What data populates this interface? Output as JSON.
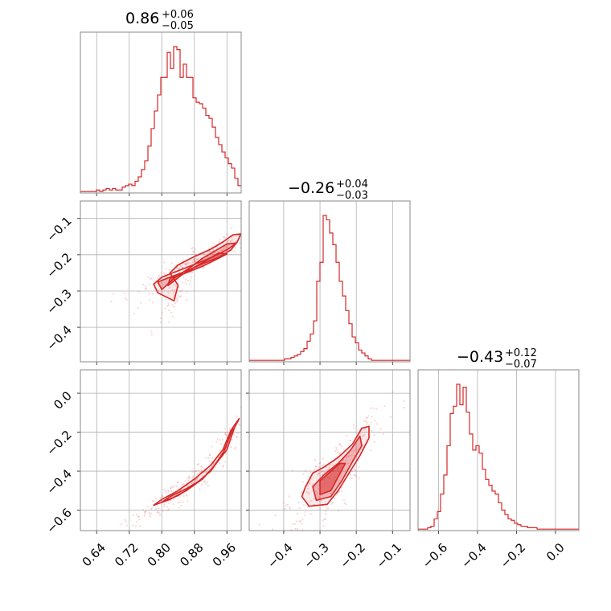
{
  "chart_data": {
    "type": "corner",
    "color": "#d62728",
    "titles": [
      {
        "value": "0.86",
        "plus": "+0.06",
        "minus": "−0.05"
      },
      {
        "value": "−0.26",
        "plus": "+0.04",
        "minus": "−0.03"
      },
      {
        "value": "−0.43",
        "plus": "+0.12",
        "minus": "−0.07"
      }
    ],
    "axes": {
      "p0": {
        "range": [
          0.6,
          0.995
        ],
        "ticks": [
          0.64,
          0.72,
          0.8,
          0.88,
          0.96
        ],
        "tick_labels": [
          "0.64",
          "0.72",
          "0.80",
          "0.88",
          "0.96"
        ]
      },
      "p1": {
        "range": [
          -0.495,
          -0.052
        ],
        "ticks": [
          -0.4,
          -0.3,
          -0.2,
          -0.1
        ],
        "tick_labels": [
          "−0.4",
          "−0.3",
          "−0.2",
          "−0.1"
        ]
      },
      "p2": {
        "range": [
          -0.705,
          0.12
        ],
        "ticks": [
          -0.6,
          -0.4,
          -0.2,
          0.0
        ],
        "tick_labels": [
          "−0.6",
          "−0.4",
          "−0.2",
          "0.0"
        ]
      }
    },
    "histograms": [
      {
        "param": "p0",
        "edges_start": 0.6,
        "bin_width": 0.0079,
        "counts": [
          0.01,
          0.01,
          0.01,
          0.01,
          0.01,
          0.02,
          0.01,
          0.02,
          0.03,
          0.02,
          0.03,
          0.02,
          0.02,
          0.04,
          0.05,
          0.06,
          0.05,
          0.08,
          0.11,
          0.16,
          0.22,
          0.32,
          0.44,
          0.56,
          0.67,
          0.79,
          0.79,
          0.96,
          0.85,
          1.0,
          0.98,
          0.79,
          0.88,
          0.79,
          0.79,
          0.65,
          0.62,
          0.61,
          0.58,
          0.53,
          0.51,
          0.45,
          0.38,
          0.33,
          0.28,
          0.24,
          0.2,
          0.17,
          0.1,
          0.05
        ]
      },
      {
        "param": "p1",
        "edges_start": -0.495,
        "bin_width": 0.00886,
        "counts": [
          0.01,
          0.01,
          0.01,
          0.01,
          0.01,
          0.01,
          0.01,
          0.01,
          0.01,
          0.01,
          0.01,
          0.02,
          0.02,
          0.03,
          0.04,
          0.05,
          0.07,
          0.09,
          0.14,
          0.19,
          0.28,
          0.55,
          0.68,
          1.0,
          0.97,
          0.88,
          0.8,
          0.68,
          0.55,
          0.45,
          0.35,
          0.26,
          0.17,
          0.13,
          0.08,
          0.06,
          0.04,
          0.02,
          0.01,
          0.01,
          0.01,
          0.01,
          0.01,
          0.01,
          0.01,
          0.01,
          0.01,
          0.01,
          0.01,
          0.01
        ]
      },
      {
        "param": "p2",
        "edges_start": -0.705,
        "bin_width": 0.0165,
        "counts": [
          0.01,
          0.01,
          0.01,
          0.02,
          0.03,
          0.08,
          0.13,
          0.25,
          0.38,
          0.58,
          0.8,
          0.85,
          1.0,
          0.86,
          0.98,
          0.81,
          0.66,
          0.55,
          0.58,
          0.53,
          0.42,
          0.35,
          0.31,
          0.27,
          0.25,
          0.19,
          0.14,
          0.11,
          0.08,
          0.07,
          0.05,
          0.04,
          0.03,
          0.03,
          0.02,
          0.02,
          0.02,
          0.01,
          0.01,
          0.01,
          0.01,
          0.01,
          0.01,
          0.01,
          0.01,
          0.01,
          0.01,
          0.01,
          0.01,
          0.01
        ]
      }
    ],
    "scatter_panels": [
      {
        "x": "p0",
        "y": "p1",
        "contours": [
          [
            [
              0.83,
              -0.327
            ],
            [
              0.79,
              -0.305
            ],
            [
              0.78,
              -0.281
            ],
            [
              0.8,
              -0.262
            ],
            [
              0.85,
              -0.24
            ],
            [
              0.9,
              -0.218
            ],
            [
              0.94,
              -0.198
            ],
            [
              0.965,
              -0.183
            ],
            [
              0.985,
              -0.166
            ],
            [
              0.994,
              -0.143
            ],
            [
              0.975,
              -0.145
            ],
            [
              0.95,
              -0.165
            ],
            [
              0.92,
              -0.185
            ],
            [
              0.88,
              -0.205
            ],
            [
              0.84,
              -0.228
            ],
            [
              0.82,
              -0.25
            ],
            [
              0.84,
              -0.284
            ],
            [
              0.83,
              -0.327
            ]
          ],
          [
            [
              0.8,
              -0.296
            ],
            [
              0.79,
              -0.275
            ],
            [
              0.82,
              -0.262
            ],
            [
              0.86,
              -0.245
            ],
            [
              0.9,
              -0.225
            ],
            [
              0.94,
              -0.207
            ],
            [
              0.97,
              -0.187
            ],
            [
              0.983,
              -0.168
            ],
            [
              0.96,
              -0.17
            ],
            [
              0.93,
              -0.19
            ],
            [
              0.9,
              -0.21
            ],
            [
              0.87,
              -0.235
            ],
            [
              0.83,
              -0.265
            ],
            [
              0.8,
              -0.296
            ]
          ],
          [
            [
              0.815,
              -0.285
            ],
            [
              0.82,
              -0.265
            ],
            [
              0.86,
              -0.25
            ],
            [
              0.9,
              -0.232
            ],
            [
              0.93,
              -0.215
            ],
            [
              0.96,
              -0.198
            ],
            [
              0.94,
              -0.195
            ],
            [
              0.91,
              -0.215
            ],
            [
              0.88,
              -0.235
            ],
            [
              0.85,
              -0.255
            ],
            [
              0.815,
              -0.285
            ]
          ]
        ]
      },
      {
        "x": "p0",
        "y": "p2",
        "contours": [
          [
            [
              0.78,
              -0.575
            ],
            [
              0.82,
              -0.545
            ],
            [
              0.86,
              -0.5
            ],
            [
              0.9,
              -0.44
            ],
            [
              0.93,
              -0.37
            ],
            [
              0.96,
              -0.29
            ],
            [
              0.978,
              -0.18
            ],
            [
              0.99,
              -0.13
            ],
            [
              0.97,
              -0.19
            ],
            [
              0.95,
              -0.29
            ],
            [
              0.92,
              -0.37
            ],
            [
              0.88,
              -0.44
            ],
            [
              0.84,
              -0.5
            ],
            [
              0.8,
              -0.545
            ],
            [
              0.78,
              -0.575
            ]
          ],
          [
            [
              0.8,
              -0.56
            ],
            [
              0.84,
              -0.525
            ],
            [
              0.88,
              -0.47
            ],
            [
              0.92,
              -0.4
            ],
            [
              0.95,
              -0.31
            ],
            [
              0.975,
              -0.18
            ],
            [
              0.955,
              -0.29
            ],
            [
              0.93,
              -0.37
            ],
            [
              0.9,
              -0.44
            ],
            [
              0.86,
              -0.49
            ],
            [
              0.82,
              -0.53
            ],
            [
              0.8,
              -0.56
            ]
          ]
        ]
      },
      {
        "x": "p1",
        "y": "p2",
        "contours": [
          [
            [
              -0.33,
              -0.58
            ],
            [
              -0.28,
              -0.57
            ],
            [
              -0.25,
              -0.5
            ],
            [
              -0.22,
              -0.41
            ],
            [
              -0.19,
              -0.32
            ],
            [
              -0.165,
              -0.23
            ],
            [
              -0.165,
              -0.17
            ],
            [
              -0.185,
              -0.18
            ],
            [
              -0.21,
              -0.26
            ],
            [
              -0.25,
              -0.33
            ],
            [
              -0.29,
              -0.38
            ],
            [
              -0.32,
              -0.41
            ],
            [
              -0.34,
              -0.48
            ],
            [
              -0.35,
              -0.53
            ],
            [
              -0.33,
              -0.58
            ]
          ],
          [
            [
              -0.31,
              -0.55
            ],
            [
              -0.27,
              -0.53
            ],
            [
              -0.24,
              -0.45
            ],
            [
              -0.21,
              -0.35
            ],
            [
              -0.185,
              -0.27
            ],
            [
              -0.19,
              -0.22
            ],
            [
              -0.215,
              -0.29
            ],
            [
              -0.25,
              -0.36
            ],
            [
              -0.29,
              -0.42
            ],
            [
              -0.32,
              -0.48
            ],
            [
              -0.31,
              -0.55
            ]
          ],
          [
            [
              -0.3,
              -0.52
            ],
            [
              -0.27,
              -0.5
            ],
            [
              -0.25,
              -0.43
            ],
            [
              -0.23,
              -0.36
            ],
            [
              -0.245,
              -0.36
            ],
            [
              -0.27,
              -0.4
            ],
            [
              -0.3,
              -0.45
            ],
            [
              -0.3,
              -0.52
            ]
          ]
        ]
      }
    ],
    "grid": true
  }
}
